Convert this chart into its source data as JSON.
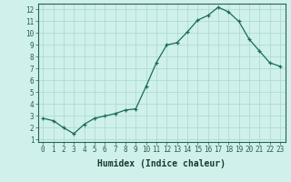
{
  "x": [
    0,
    1,
    2,
    3,
    4,
    5,
    6,
    7,
    8,
    9,
    10,
    11,
    12,
    13,
    14,
    15,
    16,
    17,
    18,
    19,
    20,
    21,
    22,
    23
  ],
  "y": [
    2.8,
    2.6,
    2.0,
    1.5,
    2.3,
    2.8,
    3.0,
    3.2,
    3.5,
    3.6,
    5.5,
    7.5,
    9.0,
    9.2,
    10.1,
    11.1,
    11.5,
    12.2,
    11.8,
    11.0,
    9.5,
    8.5,
    7.5,
    7.2
  ],
  "xlabel": "Humidex (Indice chaleur)",
  "xlim": [
    -0.5,
    23.5
  ],
  "ylim": [
    0.8,
    12.5
  ],
  "yticks": [
    1,
    2,
    3,
    4,
    5,
    6,
    7,
    8,
    9,
    10,
    11,
    12
  ],
  "xticks": [
    0,
    1,
    2,
    3,
    4,
    5,
    6,
    7,
    8,
    9,
    10,
    11,
    12,
    13,
    14,
    15,
    16,
    17,
    18,
    19,
    20,
    21,
    22,
    23
  ],
  "line_color": "#1a6b5a",
  "marker": "+",
  "bg_color": "#cff0eb",
  "grid_color": "#a8d8d0",
  "axis_color": "#2a6050",
  "font_color": "#1a3a30",
  "tick_fontsize": 5.5,
  "xlabel_fontsize": 7.0
}
